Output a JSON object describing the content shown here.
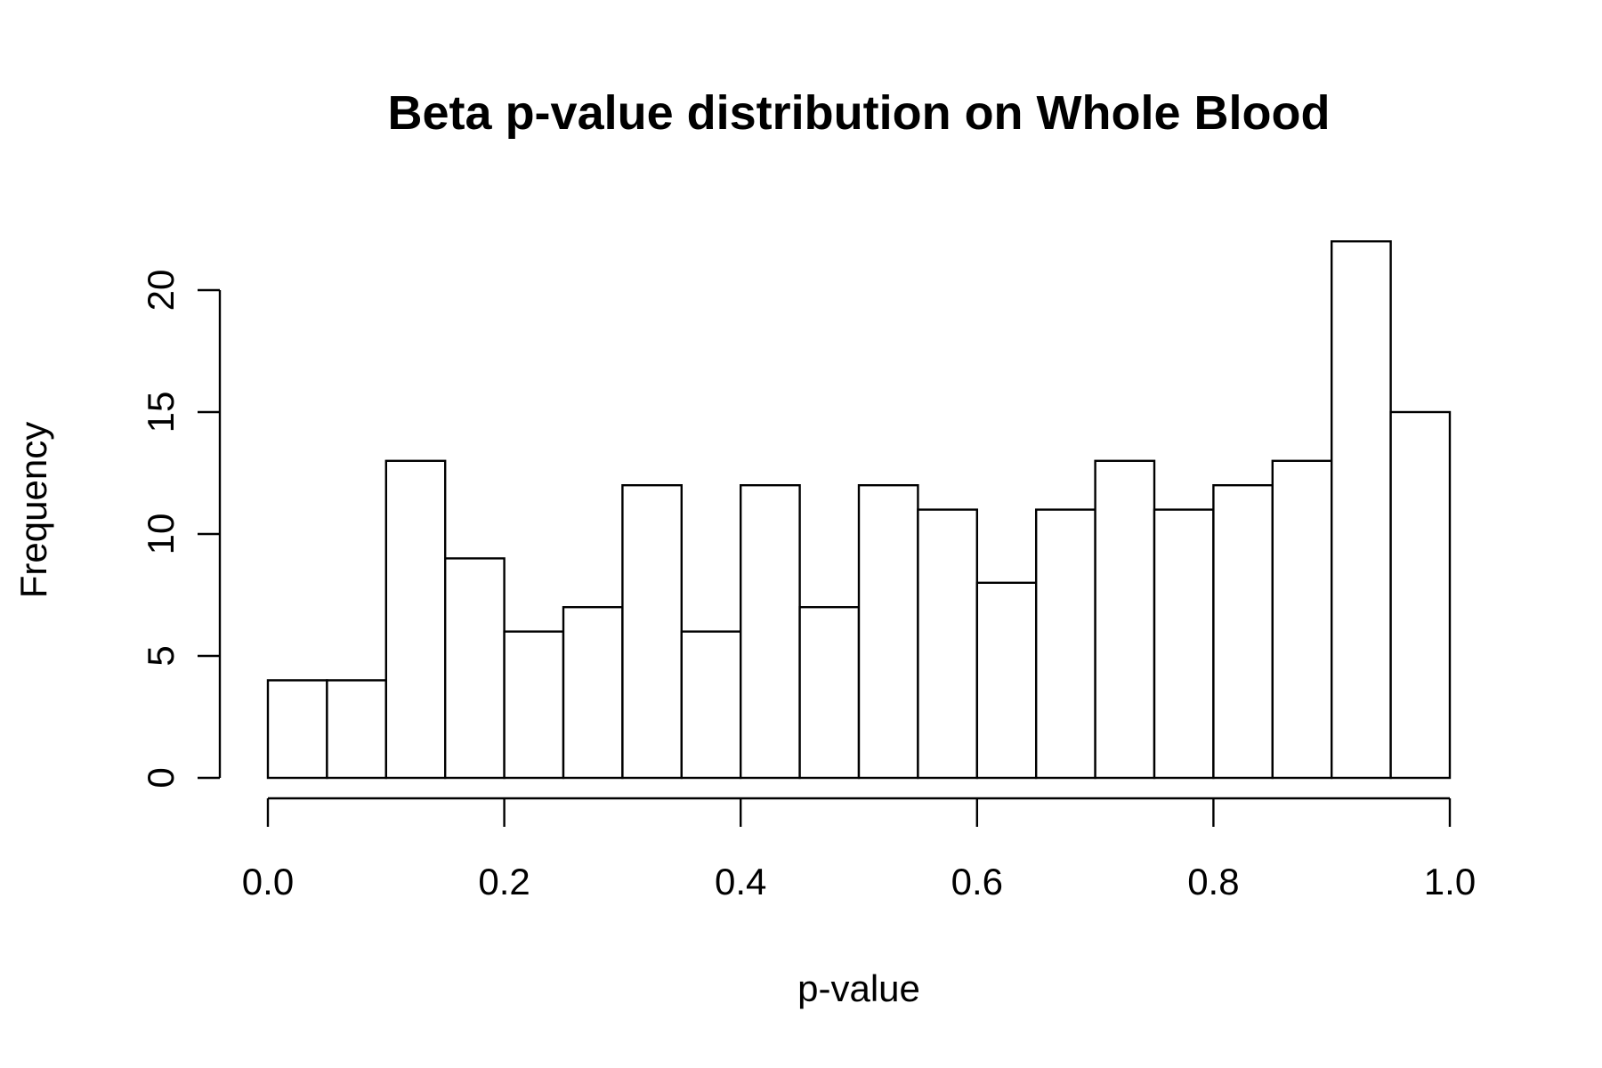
{
  "chart_data": {
    "type": "bar",
    "title": "Beta p-value distribution on Whole Blood",
    "xlabel": "p-value",
    "ylabel": "Frequency",
    "bin_edges": [
      0.0,
      0.05,
      0.1,
      0.15,
      0.2,
      0.25,
      0.3,
      0.35,
      0.4,
      0.45,
      0.5,
      0.55,
      0.6,
      0.65,
      0.7,
      0.75,
      0.8,
      0.85,
      0.9,
      0.95,
      1.0
    ],
    "values": [
      4,
      4,
      13,
      9,
      6,
      7,
      12,
      6,
      12,
      7,
      12,
      11,
      8,
      11,
      13,
      11,
      12,
      13,
      22,
      15
    ],
    "xlim": [
      0.0,
      1.0
    ],
    "ylim": [
      0,
      22
    ],
    "x_ticks": [
      "0.0",
      "0.2",
      "0.4",
      "0.6",
      "0.8",
      "1.0"
    ],
    "y_ticks": [
      "0",
      "5",
      "10",
      "15",
      "20"
    ],
    "grid": false,
    "bar_fill": "#ffffff",
    "bar_stroke": "#000000"
  }
}
